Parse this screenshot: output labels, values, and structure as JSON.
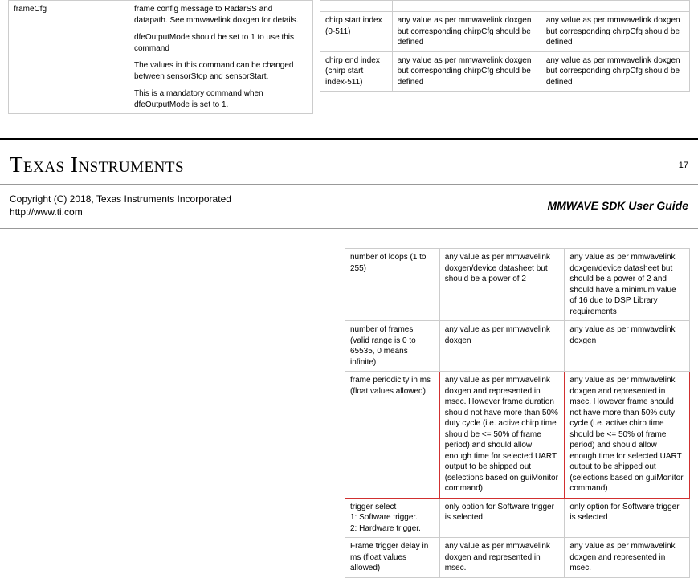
{
  "top_left": {
    "cmd": "frameCfg",
    "para1": "frame config message to RadarSS and datapath. See mmwavelink doxgen for details.",
    "para2": "dfeOutputMode should be set to 1 to use this command",
    "para3": " The values in this command can be changed between sensorStop and sensorStart.",
    "para4": "This is a mandatory command when dfeOutputMode is set to 1."
  },
  "top_right": {
    "rows": [
      {
        "c0": "chirp start index (0-511)",
        "c1": "any value as per mmwavelink doxgen but corresponding chirpCfg should be defined",
        "c2": "any value as per mmwavelink doxgen but corresponding chirpCfg should be defined"
      },
      {
        "c0": "chirp end index (chirp start index-511)",
        "c1": "any value as per mmwavelink doxgen but corresponding chirpCfg should be defined",
        "c2": "any value as per mmwavelink doxgen but corresponding chirpCfg should be defined"
      }
    ]
  },
  "page_number": "17",
  "logo_text": "Texas Instruments",
  "copyright": "Copyright (C) 2018, Texas Instruments Incorporated",
  "url": "http://www.ti.com",
  "guide_title": "MMWAVE SDK User Guide",
  "lower_rows": [
    {
      "highlight": false,
      "c0": "number of loops (1 to 255)",
      "c1": "any value as per mmwavelink doxgen/device datasheet but should be a power of 2",
      "c2": "any value as per mmwavelink doxgen/device datasheet but should be a power of 2 and should have a minimum value of 16 due to DSP Library requirements"
    },
    {
      "highlight": false,
      "c0": "number of frames (valid range is 0 to 65535, 0 means infinite)",
      "c1": "any value as per mmwavelink doxgen",
      "c2": "any value as per mmwavelink doxgen"
    },
    {
      "highlight": true,
      "c0": "frame periodicity in ms (float values allowed)",
      "c1": "any value as per mmwavelink doxgen and represented in msec. However frame duration should not have more than 50% duty cycle (i.e. active chirp time should be <= 50% of frame period) and should allow enough time for selected UART output to be shipped out (selections based on guiMonitor command)",
      "c2": "any value as per mmwavelink doxgen and represented in msec. However frame should not have more than 50% duty cycle (i.e. active chirp time should be <= 50% of frame period) and should allow enough time for selected UART output to be shipped out (selections based on guiMonitor command)"
    },
    {
      "highlight": false,
      "c0": "trigger select\n  1: Software trigger.\n  2: Hardware trigger.",
      "c1": "only option for Software trigger is selected",
      "c2": "only option for Software trigger is selected"
    },
    {
      "highlight": false,
      "c0": "Frame trigger delay in ms (float values allowed)",
      "c1": "any value as per mmwavelink doxgen and represented in msec.",
      "c2": "any value as per mmwavelink doxgen and represented in msec."
    }
  ]
}
